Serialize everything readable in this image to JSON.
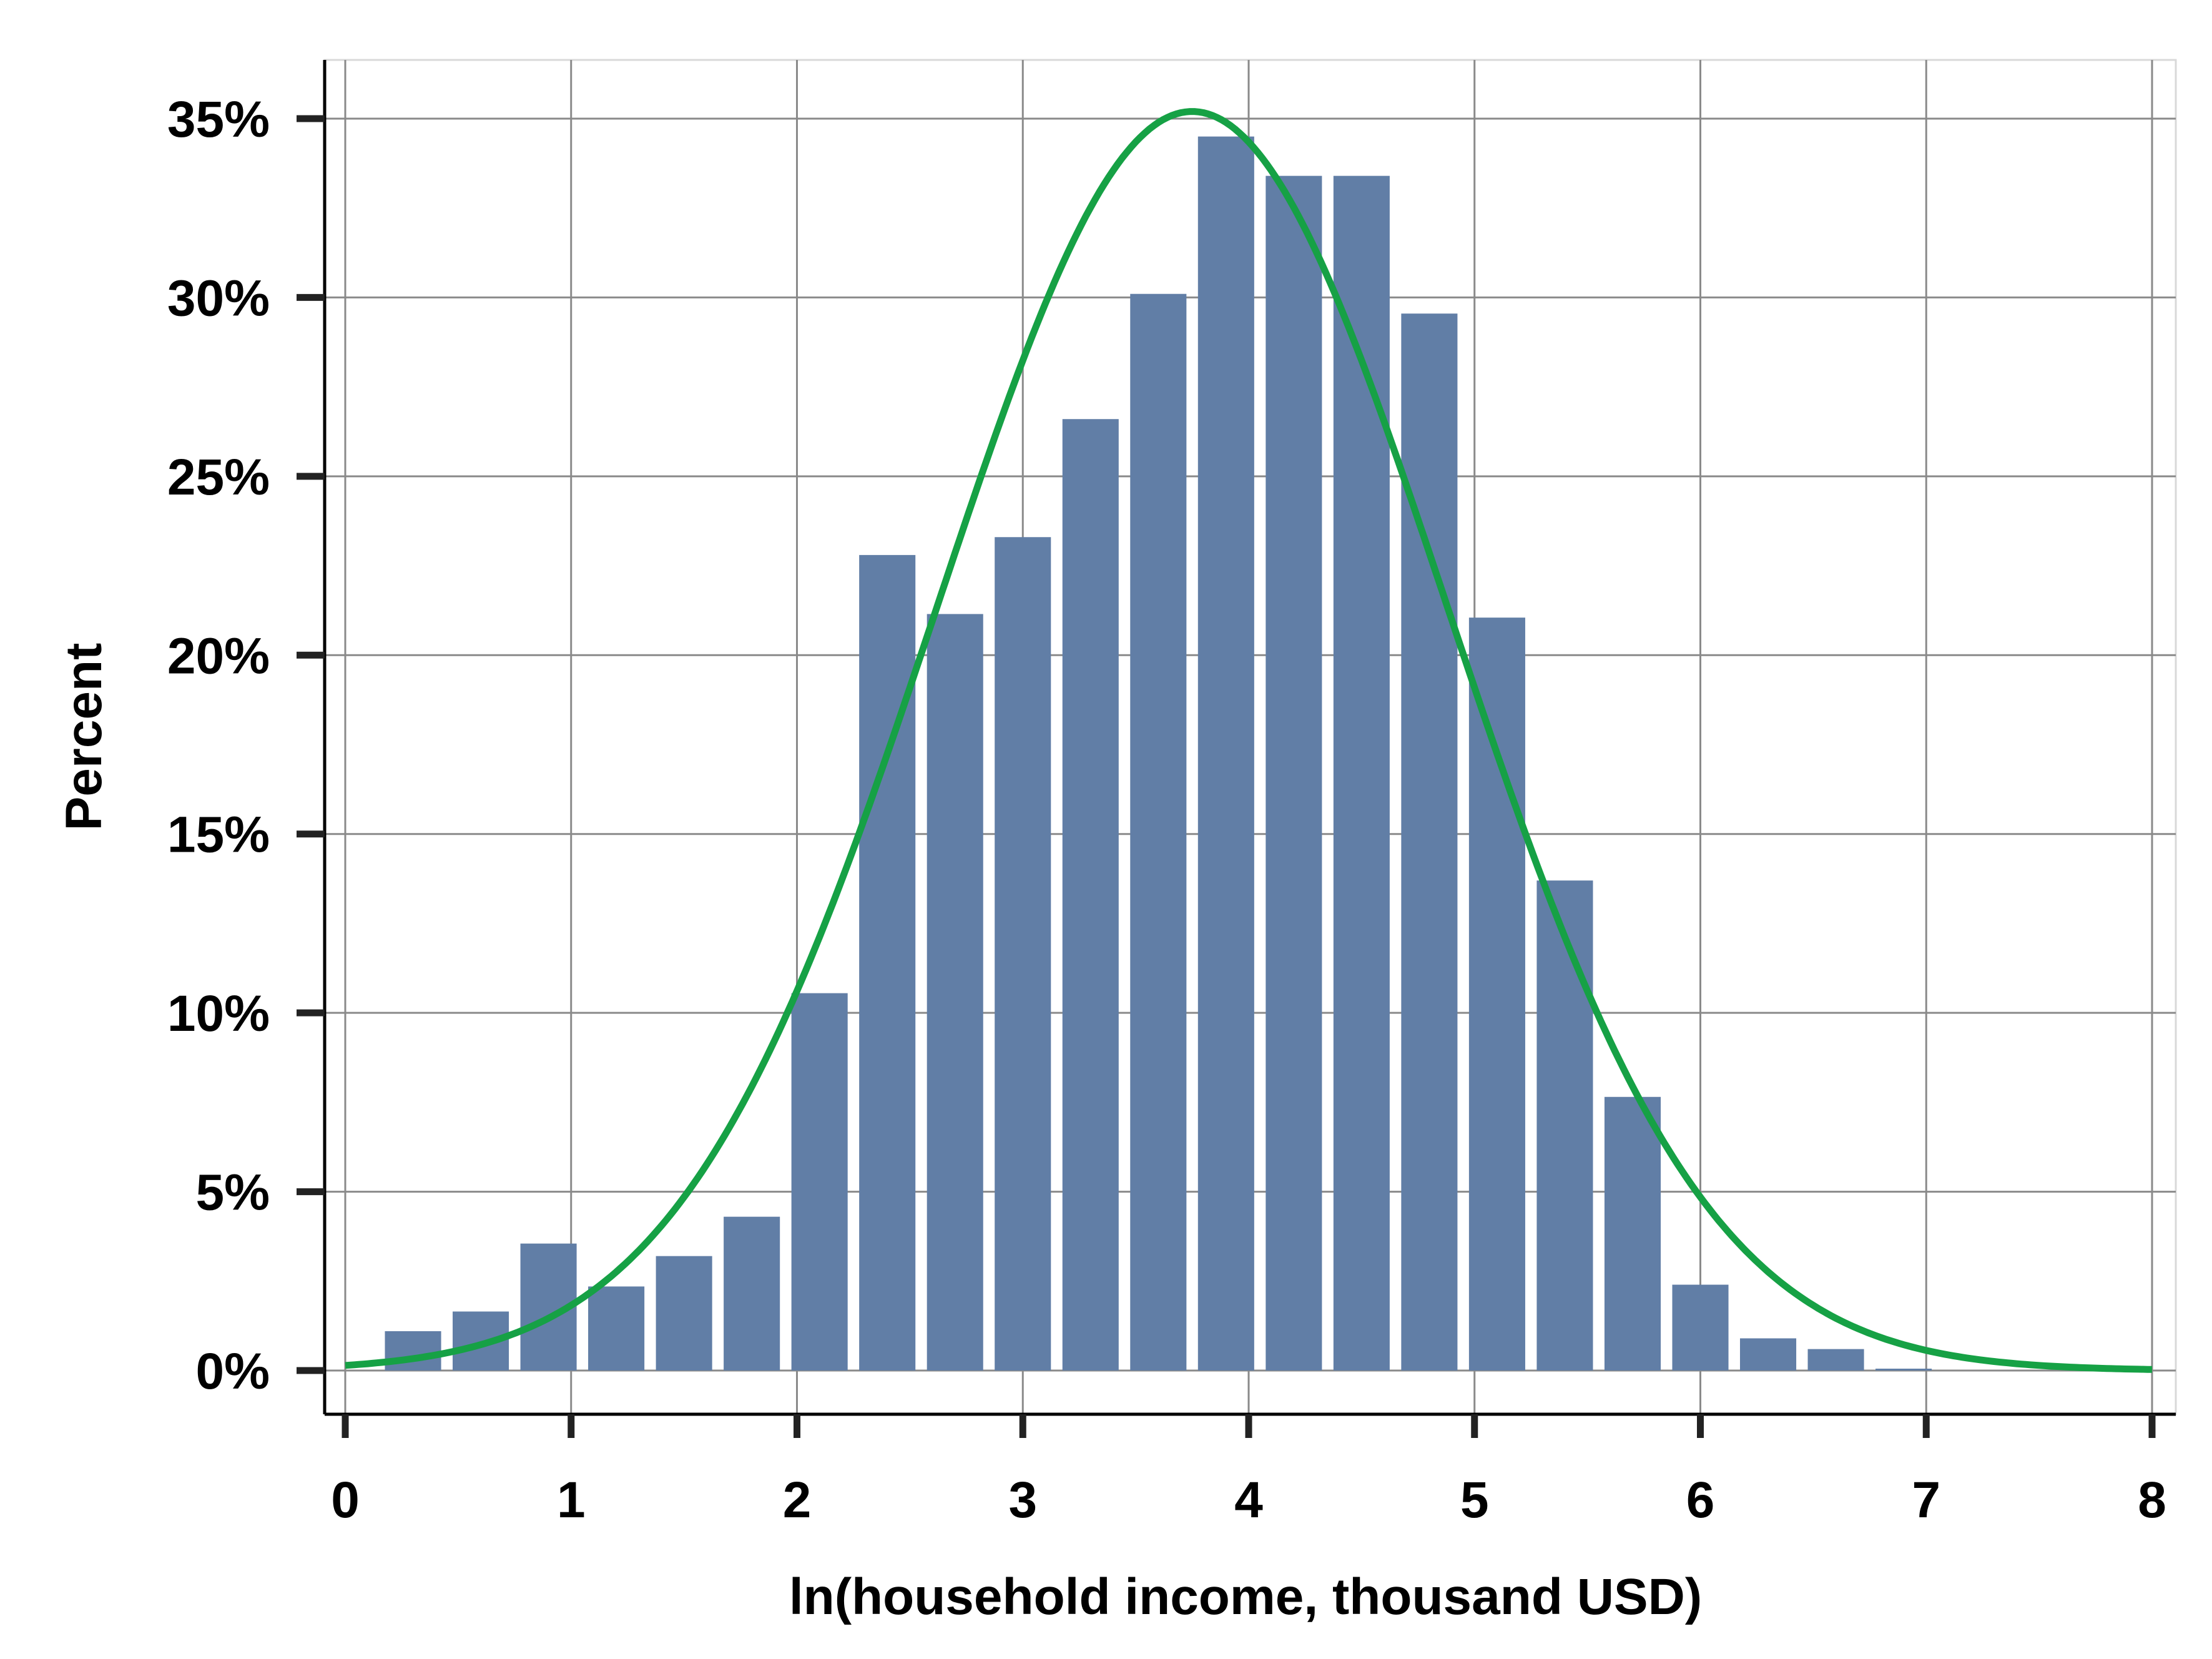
{
  "chart_data": {
    "type": "bar",
    "title": "",
    "xlabel": "ln(household income, thousand USD)",
    "ylabel": "Percent",
    "xlim": [
      0,
      8
    ],
    "ylim": [
      0,
      0.35
    ],
    "x_ticks": [
      0,
      1,
      2,
      3,
      4,
      5,
      6,
      7,
      8
    ],
    "x_tick_labels": [
      "0",
      "1",
      "2",
      "3",
      "4",
      "5",
      "6",
      "7",
      "8"
    ],
    "y_ticks": [
      0,
      0.05,
      0.1,
      0.15,
      0.2,
      0.25,
      0.3,
      0.35
    ],
    "y_tick_labels": [
      "0%",
      "5%",
      "10%",
      "15%",
      "20%",
      "25%",
      "30%",
      "35%"
    ],
    "grid": true,
    "legend": "none",
    "bin_width": 0.3,
    "bars": {
      "x": [
        0.3,
        0.6,
        0.9,
        1.2,
        1.5,
        1.8,
        2.1,
        2.4,
        2.7,
        3.0,
        3.3,
        3.6,
        3.9,
        4.2,
        4.5,
        4.8,
        5.1,
        5.4,
        5.7,
        6.0,
        6.3,
        6.6,
        6.9
      ],
      "values": [
        0.011,
        0.0165,
        0.0355,
        0.0235,
        0.032,
        0.043,
        0.1055,
        0.228,
        0.2115,
        0.233,
        0.266,
        0.301,
        0.345,
        0.334,
        0.334,
        0.2955,
        0.2105,
        0.137,
        0.0765,
        0.024,
        0.009,
        0.006,
        0.0005
      ],
      "color": "#617ea6"
    },
    "curve": {
      "type": "normal-density",
      "mean": 3.75,
      "sd": 1.13,
      "peak": 0.352,
      "color": "#16a145"
    }
  }
}
